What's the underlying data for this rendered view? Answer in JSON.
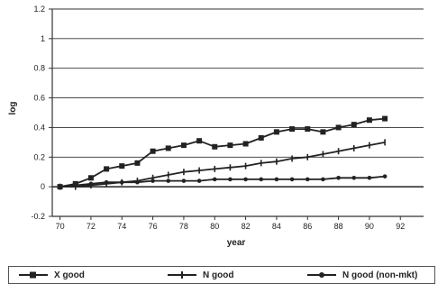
{
  "chart_data": {
    "type": "line",
    "title": "",
    "xlabel": "year",
    "ylabel": "log",
    "xlim": [
      69.5,
      93.5
    ],
    "ylim": [
      -0.2,
      1.2
    ],
    "x_ticks": [
      70,
      72,
      74,
      76,
      78,
      80,
      82,
      84,
      86,
      88,
      90,
      92
    ],
    "y_ticks": [
      -0.2,
      0,
      0.2,
      0.4,
      0.6,
      0.8,
      1,
      1.2
    ],
    "y_tick_labels": [
      "-0.2",
      "0",
      "0.2",
      "0.4",
      "0.6",
      "0.8",
      "1",
      "1.2"
    ],
    "x_tick_labels": [
      "70",
      "72",
      "74",
      "76",
      "78",
      "80",
      "82",
      "84",
      "86",
      "88",
      "90",
      "92"
    ],
    "grid": "horizontal",
    "legend_position": "bottom",
    "series": [
      {
        "name": "X good",
        "marker": "square",
        "x": [
          70,
          71,
          72,
          73,
          74,
          75,
          76,
          77,
          78,
          79,
          80,
          81,
          82,
          83,
          84,
          85,
          86,
          87,
          88,
          89,
          90,
          91
        ],
        "values": [
          0.0,
          0.02,
          0.06,
          0.12,
          0.14,
          0.16,
          0.24,
          0.26,
          0.28,
          0.31,
          0.27,
          0.28,
          0.29,
          0.33,
          0.37,
          0.39,
          0.39,
          0.37,
          0.4,
          0.42,
          0.45,
          0.46
        ]
      },
      {
        "name": "N good",
        "marker": "tick",
        "x": [
          70,
          71,
          72,
          73,
          74,
          75,
          76,
          77,
          78,
          79,
          80,
          81,
          82,
          83,
          84,
          85,
          86,
          87,
          88,
          89,
          90,
          91
        ],
        "values": [
          0.0,
          0.0,
          0.01,
          0.02,
          0.03,
          0.04,
          0.06,
          0.08,
          0.1,
          0.11,
          0.12,
          0.13,
          0.14,
          0.16,
          0.17,
          0.19,
          0.2,
          0.22,
          0.24,
          0.26,
          0.28,
          0.3
        ]
      },
      {
        "name": "N good (non-mkt)",
        "marker": "dot",
        "x": [
          70,
          71,
          72,
          73,
          74,
          75,
          76,
          77,
          78,
          79,
          80,
          81,
          82,
          83,
          84,
          85,
          86,
          87,
          88,
          89,
          90,
          91
        ],
        "values": [
          0.0,
          0.01,
          0.02,
          0.03,
          0.03,
          0.03,
          0.04,
          0.04,
          0.04,
          0.04,
          0.05,
          0.05,
          0.05,
          0.05,
          0.05,
          0.05,
          0.05,
          0.05,
          0.06,
          0.06,
          0.06,
          0.07
        ]
      }
    ]
  },
  "colors": {
    "line": "#222222",
    "grid": "#333333",
    "background": "#ffffff"
  }
}
